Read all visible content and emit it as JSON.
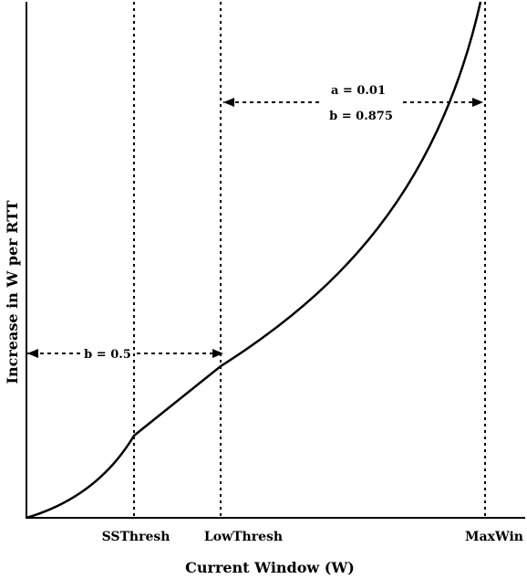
{
  "chart_data": {
    "type": "line",
    "xlabel": "Current Window (W)",
    "ylabel": "Increase in W per RTT",
    "markers": [
      "SSThresh",
      "LowThresh",
      "MaxWin"
    ],
    "annotations": {
      "slow_start_region": "b = 0.5",
      "high_region_a": "a = 0.01",
      "high_region_b": "b = 0.875"
    },
    "curve_segments": [
      "convex rise to SSThresh",
      "linear between SSThresh and LowThresh",
      "steep convex rise beyond LowThresh"
    ]
  }
}
